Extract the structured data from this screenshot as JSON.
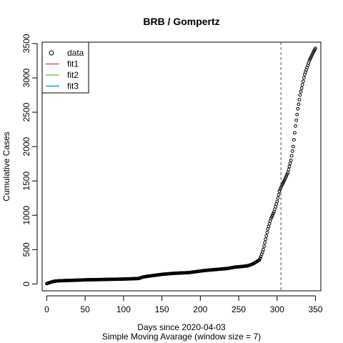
{
  "chart_data": {
    "type": "scatter",
    "title": "BRB / Gompertz",
    "xlabel": "Days since 2020-04-03",
    "subtitle": "Simple Moving Avarage (window size = 7)",
    "ylabel": "Cumulative Cases",
    "xlim": [
      -6,
      357
    ],
    "ylim": [
      -100,
      3520
    ],
    "x_ticks": [
      0,
      50,
      100,
      150,
      200,
      250,
      300,
      350
    ],
    "y_ticks": [
      0,
      500,
      1000,
      1500,
      2000,
      2500,
      3000,
      3500
    ],
    "vline_x": 305,
    "legend": {
      "position": "top-left",
      "items": [
        {
          "label": "data",
          "kind": "point",
          "color": "#000000"
        },
        {
          "label": "fit1",
          "kind": "line",
          "color": "#DF536B"
        },
        {
          "label": "fit2",
          "kind": "line",
          "color": "#61D04F"
        },
        {
          "label": "fit3",
          "kind": "line",
          "color": "#2297E6"
        }
      ]
    },
    "series": [
      {
        "name": "data",
        "style": "open-circle",
        "x_start": 0,
        "x_end": 350,
        "anchors": [
          [
            0,
            5
          ],
          [
            5,
            25
          ],
          [
            10,
            40
          ],
          [
            15,
            45
          ],
          [
            25,
            50
          ],
          [
            40,
            55
          ],
          [
            50,
            60
          ],
          [
            60,
            62
          ],
          [
            70,
            64
          ],
          [
            80,
            67
          ],
          [
            95,
            70
          ],
          [
            110,
            75
          ],
          [
            120,
            80
          ],
          [
            125,
            100
          ],
          [
            130,
            110
          ],
          [
            140,
            125
          ],
          [
            150,
            140
          ],
          [
            160,
            150
          ],
          [
            175,
            160
          ],
          [
            185,
            165
          ],
          [
            195,
            180
          ],
          [
            205,
            195
          ],
          [
            215,
            205
          ],
          [
            225,
            215
          ],
          [
            235,
            225
          ],
          [
            245,
            245
          ],
          [
            255,
            255
          ],
          [
            262,
            265
          ],
          [
            266,
            280
          ],
          [
            270,
            300
          ],
          [
            274,
            330
          ],
          [
            277,
            350
          ],
          [
            279,
            400
          ],
          [
            282,
            500
          ],
          [
            285,
            650
          ],
          [
            288,
            800
          ],
          [
            292,
            950
          ],
          [
            296,
            1050
          ],
          [
            300,
            1200
          ],
          [
            303,
            1350
          ],
          [
            306,
            1430
          ],
          [
            310,
            1520
          ],
          [
            314,
            1620
          ],
          [
            318,
            1800
          ],
          [
            321,
            2000
          ],
          [
            324,
            2300
          ],
          [
            327,
            2550
          ],
          [
            330,
            2750
          ],
          [
            333,
            2900
          ],
          [
            336,
            3050
          ],
          [
            339,
            3150
          ],
          [
            342,
            3250
          ],
          [
            345,
            3320
          ],
          [
            348,
            3390
          ],
          [
            350,
            3430
          ]
        ]
      }
    ]
  }
}
